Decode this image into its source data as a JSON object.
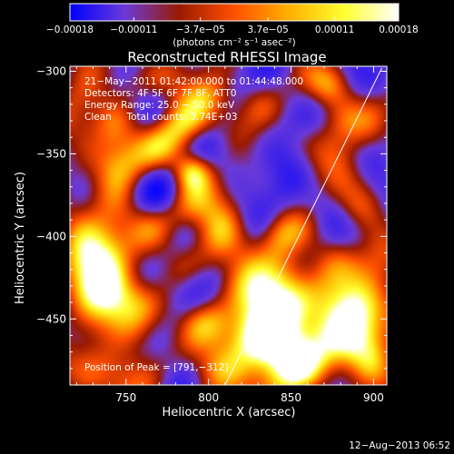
{
  "chart_data": {
    "type": "heatmap",
    "title": "Reconstructed RHESSI Image",
    "xlabel": "Heliocentric X (arcsec)",
    "ylabel": "Heliocentric Y (arcsec)",
    "xlim": [
      716,
      908
    ],
    "ylim": [
      -490,
      -297
    ],
    "x_ticks": [
      750,
      800,
      850,
      900
    ],
    "x_tick_labels": [
      "750",
      "800",
      "850",
      "900"
    ],
    "y_ticks": [
      -300,
      -350,
      -400,
      -450
    ],
    "y_tick_labels": [
      "−300",
      "−350",
      "−400",
      "−450"
    ],
    "colorbar": {
      "range": [
        -0.00018,
        0.00018
      ],
      "ticks": [
        -0.00018,
        -0.00011,
        -3.7e-05,
        3.7e-05,
        0.00011,
        0.00018
      ],
      "tick_labels": [
        "−0.00018",
        "−0.00011",
        "−3.7e−05",
        "3.7e−05",
        "0.00011",
        "0.00018"
      ],
      "units_label": "(photons cm⁻² s⁻¹ asec⁻²)",
      "colormap": [
        "#0000ff",
        "#6a3ad8",
        "#9a1a00",
        "#ff5000",
        "#ffb000",
        "#ffff30",
        "#ffffff"
      ]
    },
    "annotations": [
      "21−May−2011 01:42:00.000 to 01:44:48.000",
      "Detectors: 4F 5F 6F 7F 8F, ATT0",
      "Energy Range: 25.0 − 50.0 keV",
      "Clean     Total counts: 3.74E+03"
    ],
    "peak_label": "Position of Peak = [791,−312]",
    "peak": [
      791,
      -312
    ],
    "limb_line": [
      [
        810,
        -490
      ],
      [
        905,
        -298
      ]
    ],
    "sources": [
      [
        838,
        -435,
        0.00018,
        14
      ],
      [
        860,
        -450,
        0.00013,
        18
      ],
      [
        845,
        -470,
        0.00014,
        16
      ],
      [
        858,
        -480,
        0.00015,
        14
      ],
      [
        885,
        -460,
        0.00016,
        14
      ],
      [
        895,
        -440,
        0.00012,
        12
      ],
      [
        900,
        -478,
        0.0001,
        10
      ],
      [
        818,
        -462,
        0.00011,
        13
      ],
      [
        730,
        -430,
        0.00016,
        16
      ],
      [
        745,
        -418,
        0.00012,
        14
      ],
      [
        735,
        -405,
        8e-05,
        12
      ],
      [
        760,
        -440,
        7e-05,
        12
      ],
      [
        780,
        -448,
        6e-05,
        10
      ],
      [
        797,
        -450,
        0.00012,
        10
      ],
      [
        796,
        -485,
        9e-05,
        10
      ],
      [
        808,
        -478,
        7e-05,
        10
      ],
      [
        747,
        -355,
        0.00013,
        12
      ],
      [
        745,
        -332,
        0.00014,
        11
      ],
      [
        770,
        -345,
        9e-05,
        12
      ],
      [
        785,
        -333,
        0.00013,
        11
      ],
      [
        790,
        -360,
        0.00017,
        8
      ],
      [
        785,
        -385,
        0.0001,
        10
      ],
      [
        808,
        -398,
        0.0001,
        12
      ],
      [
        842,
        -400,
        9e-05,
        10
      ],
      [
        848,
        -420,
        8e-05,
        10
      ],
      [
        878,
        -412,
        9e-05,
        11
      ],
      [
        860,
        -370,
        7e-05,
        10
      ],
      [
        880,
        -330,
        7e-05,
        10
      ],
      [
        873,
        -310,
        8e-05,
        9
      ],
      [
        755,
        -310,
        6e-05,
        12
      ],
      [
        892,
        -385,
        6e-05,
        10
      ],
      [
        770,
        -392,
        6e-05,
        10
      ],
      [
        760,
        -460,
        7e-05,
        12
      ],
      [
        800,
        -310,
        8e-05,
        10
      ],
      [
        830,
        -320,
        6e-05,
        10
      ],
      [
        728,
        -480,
        5e-05,
        12
      ],
      [
        835,
        -460,
        0.0001,
        12
      ]
    ]
  },
  "footer": {
    "timestamp": "12−Aug−2013 06:52"
  }
}
